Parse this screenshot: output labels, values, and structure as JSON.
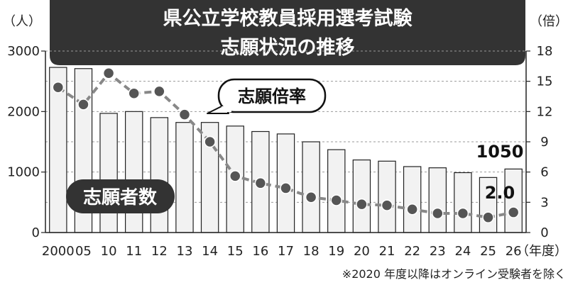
{
  "chart_data": {
    "type": "bar",
    "title_line1": "県公立学校教員採用選考試験",
    "title_line2": "志願状況の推移",
    "categories": [
      "2000",
      "05",
      "10",
      "11",
      "12",
      "13",
      "14",
      "15",
      "16",
      "17",
      "18",
      "19",
      "20",
      "21",
      "22",
      "23",
      "24",
      "25",
      "26"
    ],
    "x_unit": "（年度）",
    "series": [
      {
        "name": "志願者数",
        "kind": "bar",
        "axis": "left",
        "values": [
          2730,
          2710,
          1970,
          2000,
          1900,
          1820,
          1820,
          1760,
          1670,
          1630,
          1500,
          1370,
          1200,
          1180,
          1090,
          1070,
          990,
          910,
          1050
        ]
      },
      {
        "name": "志願倍率",
        "kind": "line",
        "axis": "right",
        "values": [
          14.4,
          12.7,
          15.8,
          13.8,
          14.0,
          11.7,
          9.0,
          5.6,
          4.9,
          4.4,
          3.5,
          3.2,
          2.8,
          2.7,
          2.3,
          1.9,
          1.9,
          1.5,
          2.0
        ]
      }
    ],
    "y_left": {
      "unit": "（人）",
      "ylim": [
        0,
        3000
      ],
      "ticks": [
        0,
        1000,
        2000,
        3000
      ]
    },
    "y_right": {
      "unit": "（倍）",
      "ylim": [
        0,
        18
      ],
      "ticks": [
        0,
        3,
        6,
        9,
        12,
        15,
        18
      ]
    },
    "annotations": {
      "last_bar_value": "1050",
      "last_rate_value": "2.0"
    },
    "grid": "horizontal-dashed",
    "footnote": "※2020 年度以降はオンライン受験者を除く",
    "colors": {
      "bar_fill": "#f2f2f2",
      "bar_stroke": "#222222",
      "line": "#888888",
      "marker": "#555555",
      "title_bg": "#333333"
    }
  }
}
